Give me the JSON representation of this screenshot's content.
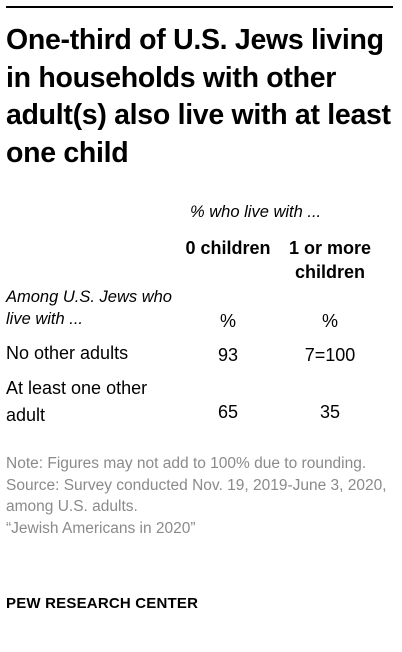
{
  "title": "One-third of U.S. Jews living in households with other adult(s) also live with at least one child",
  "chart_data": {
    "type": "table",
    "subheader": "% who live with ...",
    "row_header": "Among U.S. Jews who live with ...",
    "columns": [
      "0 children",
      "1 or more children"
    ],
    "units": [
      "%",
      "%"
    ],
    "rows": [
      {
        "label": "No other adults",
        "values": [
          "93",
          "7=100"
        ]
      },
      {
        "label": "At least one other adult",
        "values": [
          "65",
          "35"
        ]
      }
    ]
  },
  "notes": {
    "note": "Note: Figures may not add to 100% due to rounding.",
    "source": "Source: Survey conducted Nov. 19, 2019-June 3, 2020, among U.S. adults.",
    "report": "“Jewish Americans in 2020”"
  },
  "brand": "PEW RESEARCH CENTER",
  "colors": {
    "text": "#000000",
    "note_text": "#8a8a8a",
    "background": "#ffffff"
  }
}
